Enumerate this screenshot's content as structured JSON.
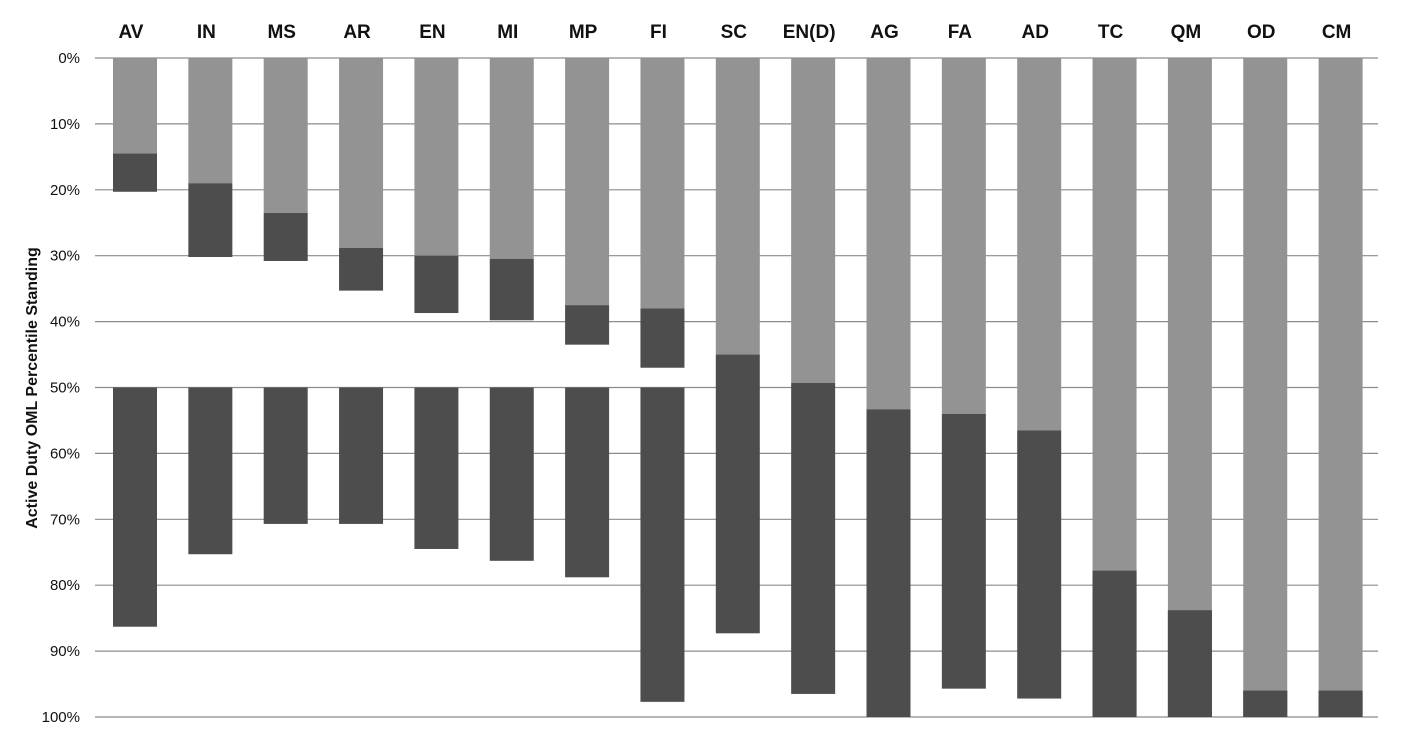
{
  "chart_data": {
    "type": "bar",
    "ylabel": "Active Duty  OML Percentile Standing",
    "y_axis_inverted": true,
    "ylim": [
      0,
      100
    ],
    "y_ticks": [
      "0%",
      "10%",
      "20%",
      "30%",
      "40%",
      "50%",
      "60%",
      "70%",
      "80%",
      "90%",
      "100%"
    ],
    "categories": [
      "AV",
      "IN",
      "MS",
      "AR",
      "EN",
      "MI",
      "MP",
      "FI",
      "SC",
      "EN(D)",
      "AG",
      "FA",
      "AD",
      "TC",
      "QM",
      "OD",
      "CM"
    ],
    "series": [
      {
        "values": [
          14.5,
          19,
          23.5,
          28.8,
          30,
          30.5,
          37.5,
          38,
          45,
          49.3,
          53.3,
          54,
          56.5,
          77.8,
          83.8,
          96,
          96
        ]
      },
      {
        "values": [
          20.3,
          30.2,
          30.8,
          35.3,
          38.7,
          39.8,
          43.5,
          47,
          50,
          50,
          50,
          50,
          50,
          100,
          100,
          100,
          100
        ]
      },
      {
        "values": [
          86.3,
          75.3,
          70.7,
          70.7,
          74.5,
          76.3,
          78.8,
          97.7,
          87.3,
          96.5,
          100,
          95.7,
          97.2,
          100,
          100,
          100,
          100
        ]
      }
    ],
    "colors": {
      "light_bar": "#939393",
      "dark_bar": "#4d4d4d",
      "gridline": "#8c8c8c",
      "text": "#111111"
    },
    "grid": true,
    "legend": "none"
  }
}
